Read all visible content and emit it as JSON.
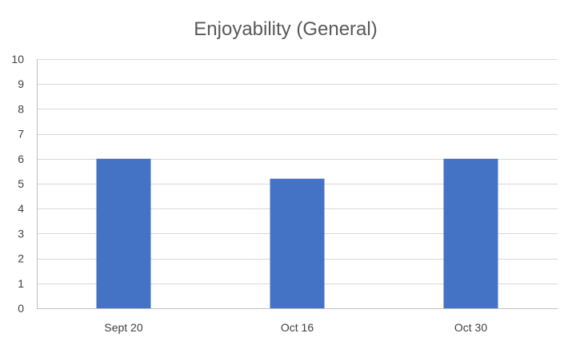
{
  "chart_data": {
    "type": "bar",
    "title": "Enjoyability (General)",
    "xlabel": "",
    "ylabel": "",
    "categories": [
      "Sept 20",
      "Oct 16",
      "Oct 30"
    ],
    "values": [
      6,
      5.2,
      6
    ],
    "ylim": [
      0,
      10
    ],
    "yticks": [
      0,
      1,
      2,
      3,
      4,
      5,
      6,
      7,
      8,
      9,
      10
    ],
    "grid": true,
    "legend": "none",
    "bar_color": "#4472c4"
  }
}
